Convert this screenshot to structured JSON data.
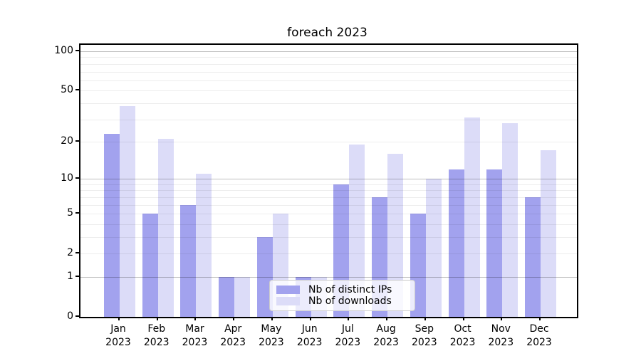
{
  "chart_data": {
    "type": "bar",
    "title": "foreach 2023",
    "categories": [
      "Jan",
      "Feb",
      "Mar",
      "Apr",
      "May",
      "Jun",
      "Jul",
      "Aug",
      "Sep",
      "Oct",
      "Nov",
      "Dec"
    ],
    "x_tick_second_line": "2023",
    "series": [
      {
        "name": "Nb of distinct IPs",
        "color": "#a2a2ee",
        "values": [
          23,
          5,
          6,
          1,
          3,
          1,
          9,
          7,
          5,
          12,
          12,
          7
        ]
      },
      {
        "name": "Nb of downloads",
        "color": "#dcdcf8",
        "values": [
          38,
          21,
          11,
          1,
          5,
          1,
          19,
          16,
          10,
          31,
          28,
          17
        ]
      }
    ],
    "y_scale": "log1p",
    "ylim": [
      0,
      112
    ],
    "y_ticks": [
      0,
      1,
      2,
      5,
      10,
      20,
      50,
      100
    ],
    "y_major_gridlines": [
      1,
      10,
      100
    ],
    "y_minor_gridlines": [
      2,
      3,
      4,
      5,
      6,
      7,
      8,
      9,
      20,
      30,
      40,
      50,
      60,
      70,
      80,
      90
    ],
    "grid": true,
    "legend_position": "lower-center",
    "colors": {
      "axis": "#000000",
      "background": "#ffffff"
    }
  }
}
